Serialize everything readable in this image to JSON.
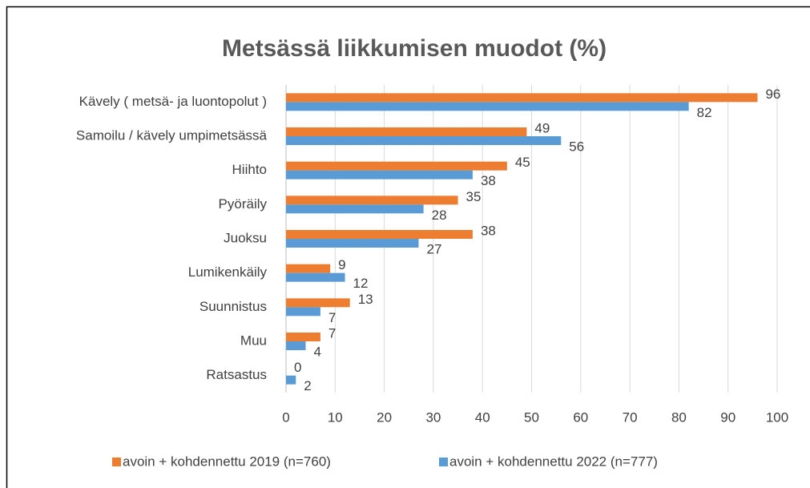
{
  "chart_data": {
    "type": "bar",
    "orientation": "horizontal",
    "title": "Metsässä liikkumisen muodot (%)",
    "categories": [
      "Kävely ( metsä- ja luontopolut )",
      "Samoilu / kävely umpimetsässä",
      "Hiihto",
      "Pyöräily",
      "Juoksu",
      "Lumikenkäily",
      "Suunnistus",
      "Muu",
      "Ratsastus"
    ],
    "series": [
      {
        "name": "avoin + kohdennettu 2019 (n=760)",
        "color": "#ed7d31",
        "values": [
          96,
          49,
          45,
          35,
          38,
          9,
          13,
          7,
          0
        ]
      },
      {
        "name": "avoin + kohdennettu 2022 (n=777)",
        "color": "#5b9bd5",
        "values": [
          82,
          56,
          38,
          28,
          27,
          12,
          7,
          4,
          2
        ]
      }
    ],
    "xlim": [
      0,
      100
    ],
    "xticks": [
      0,
      10,
      20,
      30,
      40,
      50,
      60,
      70,
      80,
      90,
      100
    ],
    "grid": true,
    "legend": "bottom"
  }
}
